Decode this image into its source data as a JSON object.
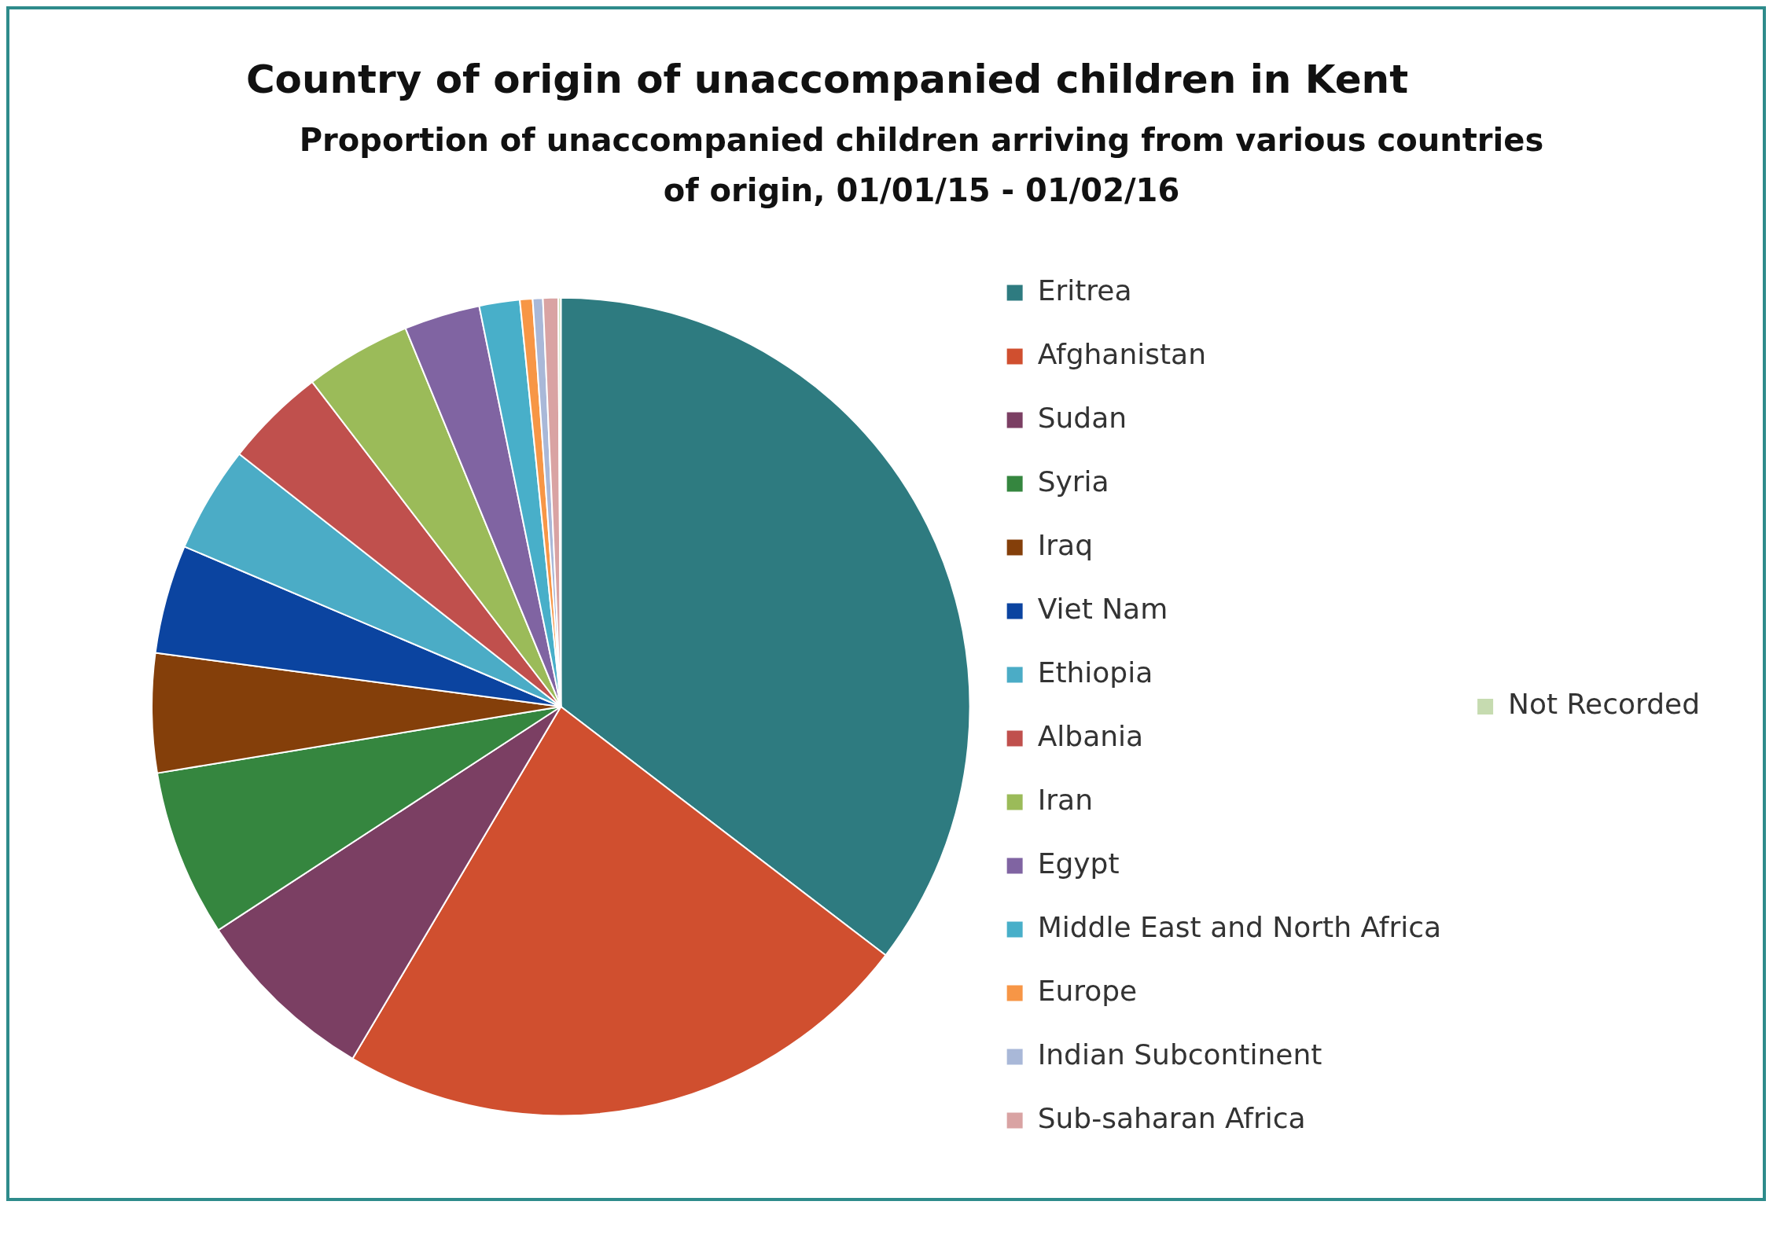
{
  "chart_data": {
    "type": "pie",
    "title": "Country of origin of unaccompanied  children in Kent",
    "subtitle": "Proportion of unaccompanied children arriving from various countries of origin, 01/01/15 - 01/02/16",
    "categories": [
      "Eritrea",
      "Afghanistan",
      "Sudan",
      "Syria",
      "Iraq",
      "Viet Nam",
      "Ethiopia",
      "Albania",
      "Iran",
      "Egypt",
      "Middle East and North Africa",
      "Europe",
      "Indian Subcontinent",
      "Sub-saharan Africa",
      "Not Recorded"
    ],
    "values": [
      35.4,
      23.1,
      7.3,
      6.6,
      4.7,
      4.3,
      4.2,
      4.0,
      4.2,
      3.0,
      1.6,
      0.5,
      0.4,
      0.6,
      0.1
    ],
    "colors": [
      "#2e7b80",
      "#d04f2f",
      "#7b3f63",
      "#35863f",
      "#843f0a",
      "#0b44a0",
      "#4bacc6",
      "#c0504d",
      "#9bbb59",
      "#8064a2",
      "#48afc9",
      "#f79646",
      "#a9b8d8",
      "#d9a3a3",
      "#c6dbb0"
    ],
    "legend": "right"
  }
}
